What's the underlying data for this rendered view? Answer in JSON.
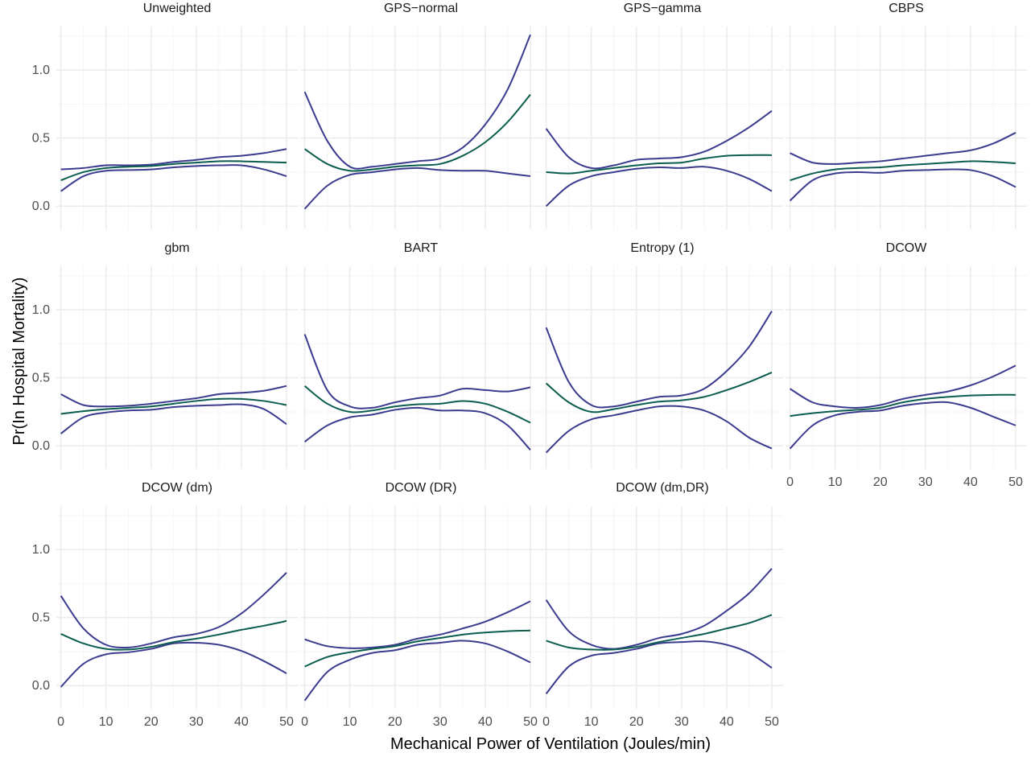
{
  "chart_data": {
    "type": "line",
    "xlabel": "Mechanical Power of Ventilation (Joules/min)",
    "ylabel": "Pr(In Hospital Mortality)",
    "xlim": [
      -1,
      52.5
    ],
    "ylim": [
      -0.17,
      1.32
    ],
    "x_ticks": [
      0,
      10,
      20,
      30,
      40,
      50
    ],
    "x_tick_labels": [
      "0",
      "10",
      "20",
      "30",
      "40",
      "50"
    ],
    "y_ticks": [
      0.0,
      0.5,
      1.0
    ],
    "y_tick_labels": [
      "0.0",
      "0.5",
      "1.0"
    ],
    "grid": true,
    "colors": {
      "estimate": "#0b5e4e",
      "band": "#3b3b8f",
      "grid_major": "#ebebeb",
      "grid_minor": "#f5f5f5"
    },
    "x": [
      0,
      5,
      10,
      15,
      20,
      25,
      30,
      35,
      40,
      45,
      50
    ],
    "panels": [
      {
        "title": "Unweighted",
        "estimate": [
          0.19,
          0.25,
          0.28,
          0.29,
          0.295,
          0.31,
          0.32,
          0.33,
          0.33,
          0.325,
          0.32
        ],
        "lower": [
          0.11,
          0.22,
          0.26,
          0.265,
          0.27,
          0.285,
          0.295,
          0.3,
          0.3,
          0.27,
          0.22
        ],
        "upper": [
          0.27,
          0.28,
          0.3,
          0.3,
          0.305,
          0.325,
          0.34,
          0.36,
          0.37,
          0.39,
          0.42
        ]
      },
      {
        "title": "GPS−normal",
        "estimate": [
          0.42,
          0.31,
          0.26,
          0.27,
          0.29,
          0.3,
          0.31,
          0.37,
          0.47,
          0.62,
          0.82
        ],
        "lower": [
          -0.02,
          0.15,
          0.23,
          0.25,
          0.27,
          0.28,
          0.265,
          0.26,
          0.26,
          0.24,
          0.22
        ],
        "upper": [
          0.84,
          0.48,
          0.29,
          0.29,
          0.31,
          0.33,
          0.35,
          0.43,
          0.6,
          0.86,
          1.26
        ]
      },
      {
        "title": "GPS−gamma",
        "estimate": [
          0.25,
          0.24,
          0.26,
          0.28,
          0.3,
          0.315,
          0.32,
          0.35,
          0.37,
          0.375,
          0.375
        ],
        "lower": [
          0.0,
          0.15,
          0.22,
          0.25,
          0.275,
          0.285,
          0.28,
          0.29,
          0.26,
          0.2,
          0.11
        ],
        "upper": [
          0.57,
          0.36,
          0.28,
          0.3,
          0.34,
          0.35,
          0.36,
          0.4,
          0.48,
          0.58,
          0.7
        ]
      },
      {
        "title": "CBPS",
        "estimate": [
          0.19,
          0.24,
          0.27,
          0.28,
          0.285,
          0.3,
          0.31,
          0.32,
          0.33,
          0.325,
          0.315
        ],
        "lower": [
          0.04,
          0.19,
          0.24,
          0.25,
          0.245,
          0.26,
          0.265,
          0.27,
          0.265,
          0.22,
          0.14
        ],
        "upper": [
          0.39,
          0.32,
          0.31,
          0.32,
          0.33,
          0.35,
          0.37,
          0.39,
          0.41,
          0.46,
          0.54
        ]
      },
      {
        "title": "gbm",
        "estimate": [
          0.235,
          0.255,
          0.27,
          0.28,
          0.29,
          0.31,
          0.33,
          0.345,
          0.345,
          0.33,
          0.3
        ],
        "lower": [
          0.09,
          0.21,
          0.245,
          0.26,
          0.265,
          0.285,
          0.295,
          0.3,
          0.305,
          0.27,
          0.16
        ],
        "upper": [
          0.38,
          0.3,
          0.29,
          0.295,
          0.31,
          0.33,
          0.35,
          0.38,
          0.39,
          0.405,
          0.44
        ]
      },
      {
        "title": "BART",
        "estimate": [
          0.44,
          0.31,
          0.25,
          0.26,
          0.29,
          0.305,
          0.31,
          0.33,
          0.31,
          0.25,
          0.17
        ],
        "lower": [
          0.03,
          0.15,
          0.21,
          0.23,
          0.265,
          0.28,
          0.26,
          0.26,
          0.24,
          0.15,
          -0.03
        ],
        "upper": [
          0.82,
          0.41,
          0.29,
          0.28,
          0.32,
          0.35,
          0.37,
          0.42,
          0.41,
          0.4,
          0.43
        ]
      },
      {
        "title": "Entropy (1)",
        "estimate": [
          0.46,
          0.32,
          0.25,
          0.27,
          0.3,
          0.325,
          0.335,
          0.36,
          0.41,
          0.47,
          0.54
        ],
        "lower": [
          -0.05,
          0.11,
          0.195,
          0.225,
          0.26,
          0.29,
          0.29,
          0.26,
          0.18,
          0.06,
          -0.02
        ],
        "upper": [
          0.87,
          0.47,
          0.3,
          0.29,
          0.325,
          0.36,
          0.37,
          0.42,
          0.55,
          0.73,
          0.99
        ]
      },
      {
        "title": "DCOW",
        "estimate": [
          0.22,
          0.24,
          0.255,
          0.265,
          0.28,
          0.32,
          0.345,
          0.36,
          0.37,
          0.375,
          0.375
        ],
        "lower": [
          -0.02,
          0.15,
          0.225,
          0.25,
          0.26,
          0.295,
          0.315,
          0.32,
          0.28,
          0.215,
          0.15
        ],
        "upper": [
          0.42,
          0.32,
          0.29,
          0.28,
          0.3,
          0.345,
          0.375,
          0.4,
          0.445,
          0.51,
          0.59
        ]
      },
      {
        "title": "DCOW (dm)",
        "estimate": [
          0.38,
          0.31,
          0.27,
          0.265,
          0.285,
          0.32,
          0.345,
          0.375,
          0.41,
          0.44,
          0.475
        ],
        "lower": [
          -0.01,
          0.16,
          0.23,
          0.245,
          0.27,
          0.31,
          0.315,
          0.3,
          0.255,
          0.18,
          0.09
        ],
        "upper": [
          0.66,
          0.42,
          0.3,
          0.28,
          0.31,
          0.355,
          0.38,
          0.43,
          0.53,
          0.67,
          0.83
        ]
      },
      {
        "title": "DCOW (DR)",
        "estimate": [
          0.14,
          0.21,
          0.245,
          0.27,
          0.29,
          0.325,
          0.35,
          0.375,
          0.39,
          0.4,
          0.405
        ],
        "lower": [
          -0.11,
          0.1,
          0.19,
          0.24,
          0.26,
          0.3,
          0.315,
          0.33,
          0.31,
          0.25,
          0.17
        ],
        "upper": [
          0.34,
          0.29,
          0.275,
          0.28,
          0.3,
          0.345,
          0.375,
          0.42,
          0.47,
          0.54,
          0.62
        ]
      },
      {
        "title": "DCOW (dm,DR)",
        "estimate": [
          0.33,
          0.28,
          0.265,
          0.265,
          0.285,
          0.32,
          0.35,
          0.38,
          0.42,
          0.46,
          0.52
        ],
        "lower": [
          -0.06,
          0.14,
          0.22,
          0.24,
          0.27,
          0.31,
          0.32,
          0.325,
          0.3,
          0.24,
          0.13
        ],
        "upper": [
          0.63,
          0.4,
          0.3,
          0.27,
          0.3,
          0.35,
          0.38,
          0.44,
          0.55,
          0.68,
          0.86
        ]
      }
    ]
  }
}
